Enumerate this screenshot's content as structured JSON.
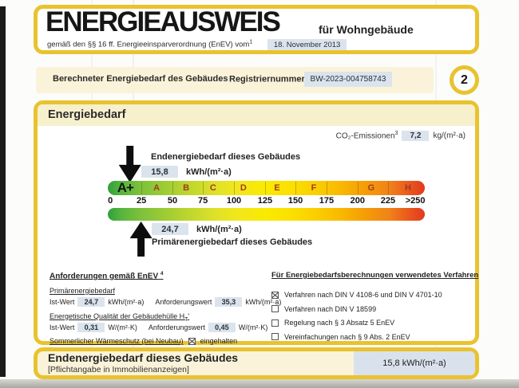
{
  "header": {
    "title": "ENERGIEAUSWEIS",
    "subtitle_right": "für Wohngebäude",
    "law_text": "gemäß den §§ 16 ff. Energieeinsparverordnung (EnEV) vom",
    "law_footnote": "1",
    "date_value": "18. November 2013"
  },
  "meta_bar": {
    "left_label": "Berechneter Energiebedarf des Gebäudes",
    "register_label": "Registriernummer",
    "register_footnote": "2",
    "register_value": "BW-2023-004758743",
    "page_number": "2"
  },
  "energy_section": {
    "title": "Energiebedarf",
    "co2_label": "CO₂-Emissionen",
    "co2_footnote": "3",
    "co2_value": "7,2",
    "co2_unit": "kg/(m²·a)",
    "end_energy_label": "Endenergiebedarf dieses Gebäudes",
    "end_energy_value": "15,8",
    "end_energy_unit": "kWh/(m²·a)",
    "primary_energy_value": "24,7",
    "primary_energy_unit": "kWh/(m²·a)",
    "primary_energy_label": "Primärenergiebedarf dieses Gebäudes"
  },
  "energy_scale": {
    "letters": [
      "A+",
      "A",
      "B",
      "C",
      "D",
      "E",
      "F",
      "G",
      "H"
    ],
    "ticks": [
      "0",
      "25",
      "50",
      "75",
      "100",
      "125",
      "150",
      "175",
      "200",
      "225",
      ">250"
    ],
    "end_energy_marker_value": 15.8,
    "primary_energy_marker_value": 24.7,
    "gradient_colors": [
      "#2fa03c",
      "#9aca36",
      "#faea00",
      "#f59e06",
      "#e23a1e"
    ]
  },
  "requirements": {
    "title": "Anforderungen gemäß EnEV",
    "title_footnote": "4",
    "primary_heading": "Primärenergiebedarf",
    "ist_label": "Ist-Wert",
    "req_label": "Anforderungswert",
    "primary_ist": "24,7",
    "primary_req": "35,3",
    "energy_unit": "kWh/(m²·a)",
    "envelope_heading": "Energetische Qualität der Gebäudehülle H",
    "envelope_sub": "T",
    "envelope_prime": "'",
    "envelope_ist": "0,31",
    "envelope_req": "0,45",
    "envelope_unit": "W/(m²·K)",
    "summer_label": "Sommerlicher Wärmeschutz (bei Neubau)",
    "summer_status": "eingehalten",
    "summer_checked": true
  },
  "methods": {
    "title": "Für Energiebedarfsberechnungen verwendetes Verfahren",
    "items": [
      {
        "label": "Verfahren nach DIN V 4108-6 und DIN V 4701-10",
        "checked": true
      },
      {
        "label": "Verfahren nach DIN V 18599",
        "checked": false
      },
      {
        "label": "Regelung nach § 3 Absatz 5 EnEV",
        "checked": false
      },
      {
        "label": "Vereinfachungen nach § 9 Abs. 2 EnEV",
        "checked": false
      }
    ]
  },
  "footer": {
    "title": "Endenergiebedarf dieses Gebäudes",
    "subtitle": "[Pflichtangabe in Immobilienanzeigen]",
    "value": "15,8 kWh/(m²·a)"
  },
  "colors": {
    "border_yellow": "#e9c32f",
    "cream_background": "#faf3d9",
    "value_box_blue": "#dbe4ed"
  }
}
